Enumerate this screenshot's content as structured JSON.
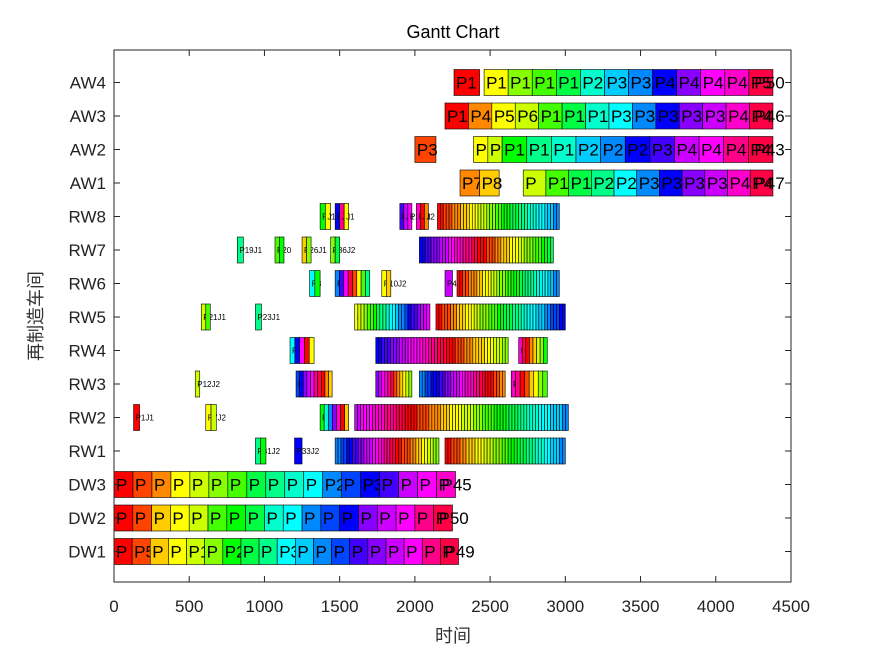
{
  "chart_data": {
    "type": "gantt",
    "title": "Gantt Chart",
    "xlabel": "时间",
    "ylabel": "再制造车间",
    "xlim": [
      0,
      4500
    ],
    "xticks": [
      0,
      500,
      1000,
      1500,
      2000,
      2500,
      3000,
      3500,
      4000,
      4500
    ],
    "rows": [
      "AW4",
      "AW3",
      "AW2",
      "AW1",
      "RW8",
      "RW7",
      "RW6",
      "RW5",
      "RW4",
      "RW3",
      "RW2",
      "RW1",
      "DW3",
      "DW2",
      "DW1"
    ],
    "row_end_labels": [
      {
        "row": "AW4",
        "x": 4350,
        "text": "P50"
      },
      {
        "row": "AW3",
        "x": 4350,
        "text": "P46"
      },
      {
        "row": "AW2",
        "x": 4350,
        "text": "P43"
      },
      {
        "row": "AW1",
        "x": 4350,
        "text": "P47"
      },
      {
        "row": "DW3",
        "x": 2270,
        "text": "P45"
      },
      {
        "row": "DW2",
        "x": 2250,
        "text": "P50"
      },
      {
        "row": "DW1",
        "x": 2290,
        "text": "P49"
      }
    ],
    "palette": [
      "#ff0000",
      "#ff4400",
      "#ff8800",
      "#ffcc00",
      "#ffff00",
      "#ccff00",
      "#88ff00",
      "#44ff00",
      "#00ff00",
      "#00ff44",
      "#00ff88",
      "#00ffcc",
      "#00ffff",
      "#00ccff",
      "#0088ff",
      "#0044ff",
      "#0000ff",
      "#4400ff",
      "#8800ff",
      "#cc00ff",
      "#ff00ff",
      "#ff00cc",
      "#ff0088",
      "#ff0044"
    ],
    "task_groups": [
      {
        "row": "AW4",
        "start": 2260,
        "end": 2430,
        "count": 1,
        "c0": 0,
        "c1": 0,
        "labels": [
          "P1"
        ],
        "font": 17
      },
      {
        "row": "AW4",
        "start": 2460,
        "end": 4380,
        "count": 12,
        "c0": 4,
        "c1": 23,
        "labels": [
          "P1",
          "P1",
          "P1",
          "P1",
          "P2",
          "P3",
          "P3",
          "P4",
          "P4",
          "P4",
          "P4",
          "P5"
        ],
        "font": 17
      },
      {
        "row": "AW3",
        "start": 2200,
        "end": 4380,
        "count": 14,
        "c0": 0,
        "c1": 23,
        "labels": [
          "P1",
          "P4",
          "P5",
          "P6",
          "P1",
          "P1",
          "P1",
          "P3",
          "P3",
          "P3",
          "P3",
          "P3",
          "P4",
          "P4"
        ],
        "font": 17
      },
      {
        "row": "AW2",
        "start": 2000,
        "end": 2140,
        "count": 1,
        "c0": 1,
        "c1": 1,
        "labels": [
          "P3"
        ],
        "font": 17
      },
      {
        "row": "AW2",
        "start": 2390,
        "end": 2580,
        "count": 2,
        "c0": 4,
        "c1": 5,
        "labels": [
          "P9",
          "P1"
        ],
        "font": 17
      },
      {
        "row": "AW2",
        "start": 2580,
        "end": 4380,
        "count": 11,
        "c0": 8,
        "c1": 23,
        "labels": [
          "P1",
          "P1",
          "P1",
          "P2",
          "P2",
          "P2",
          "P3",
          "P4",
          "P4",
          "P4",
          "P4"
        ],
        "font": 17
      },
      {
        "row": "AW1",
        "start": 2300,
        "end": 2560,
        "count": 2,
        "c0": 2,
        "c1": 3,
        "labels": [
          "P7",
          "P8"
        ],
        "font": 17
      },
      {
        "row": "AW1",
        "start": 2720,
        "end": 4380,
        "count": 11,
        "c0": 5,
        "c1": 23,
        "labels": [
          "P",
          "P1",
          "P1",
          "P2",
          "P2",
          "P3",
          "P3",
          "P3",
          "P3",
          "P4",
          "P4"
        ],
        "font": 17
      },
      {
        "row": "RW8",
        "start": 1370,
        "end": 1440,
        "count": 2,
        "c0": 8,
        "c1": 4,
        "labels": [
          "P2",
          "J1"
        ],
        "font": 8
      },
      {
        "row": "RW8",
        "start": 1470,
        "end": 1560,
        "count": 3,
        "c0": 16,
        "c1": 4,
        "labels": [
          "P1",
          "J1",
          "J1"
        ],
        "font": 8
      },
      {
        "row": "RW8",
        "start": 1900,
        "end": 1980,
        "count": 3,
        "c0": 17,
        "c1": 20,
        "labels": [
          "P2",
          "J1",
          "P2"
        ],
        "font": 8
      },
      {
        "row": "RW8",
        "start": 2010,
        "end": 2090,
        "count": 3,
        "c0": 21,
        "c1": 2,
        "labels": [
          "P2",
          "J1",
          "J2"
        ],
        "font": 8
      },
      {
        "row": "RW8",
        "start": 2150,
        "end": 2960,
        "count": 42,
        "c0": 0,
        "c1": 14,
        "labels": [
          "P27J2"
        ],
        "font": 8
      },
      {
        "row": "RW7",
        "start": 820,
        "end": 860,
        "count": 1,
        "c0": 10,
        "c1": 10,
        "labels": [
          "P19J1"
        ],
        "font": 8
      },
      {
        "row": "RW7",
        "start": 1070,
        "end": 1130,
        "count": 2,
        "c0": 7,
        "c1": 8,
        "labels": [
          "P20"
        ],
        "font": 8
      },
      {
        "row": "RW7",
        "start": 1250,
        "end": 1310,
        "count": 2,
        "c0": 3,
        "c1": 6,
        "labels": [
          "P26J1"
        ],
        "font": 8
      },
      {
        "row": "RW7",
        "start": 1440,
        "end": 1500,
        "count": 2,
        "c0": 6,
        "c1": 9,
        "labels": [
          "P36J2"
        ],
        "font": 8
      },
      {
        "row": "RW7",
        "start": 2030,
        "end": 2920,
        "count": 46,
        "c0": 16,
        "c1": 9,
        "labels": [
          "P1"
        ],
        "font": 8
      },
      {
        "row": "RW6",
        "start": 1300,
        "end": 1370,
        "count": 2,
        "c0": 12,
        "c1": 8,
        "labels": [
          "P8"
        ],
        "font": 8
      },
      {
        "row": "RW6",
        "start": 1470,
        "end": 1700,
        "count": 8,
        "c0": 14,
        "c1": 10,
        "labels": [
          "P2"
        ],
        "font": 8
      },
      {
        "row": "RW6",
        "start": 1780,
        "end": 1840,
        "count": 2,
        "c0": 4,
        "c1": 3,
        "labels": [
          "P10J2"
        ],
        "font": 8
      },
      {
        "row": "RW6",
        "start": 2200,
        "end": 2250,
        "count": 1,
        "c0": 19,
        "c1": 19,
        "labels": [
          "P4"
        ],
        "font": 8
      },
      {
        "row": "RW6",
        "start": 2280,
        "end": 2960,
        "count": 36,
        "c0": 0,
        "c1": 14,
        "labels": [
          "P41J2"
        ],
        "font": 8
      },
      {
        "row": "RW5",
        "start": 580,
        "end": 640,
        "count": 2,
        "c0": 5,
        "c1": 7,
        "labels": [
          "P21J1"
        ],
        "font": 8
      },
      {
        "row": "RW5",
        "start": 940,
        "end": 980,
        "count": 1,
        "c0": 10,
        "c1": 10,
        "labels": [
          "P23J1"
        ],
        "font": 8
      },
      {
        "row": "RW5",
        "start": 1600,
        "end": 2100,
        "count": 24,
        "c0": 4,
        "c1": 20,
        "labels": [
          "P4J2"
        ],
        "font": 8
      },
      {
        "row": "RW5",
        "start": 2140,
        "end": 3000,
        "count": 44,
        "c0": 0,
        "c1": 16,
        "labels": [
          "P29J2"
        ],
        "font": 8
      },
      {
        "row": "RW4",
        "start": 1170,
        "end": 1330,
        "count": 5,
        "c0": 12,
        "c1": 4,
        "labels": [
          "P9J2"
        ],
        "font": 8
      },
      {
        "row": "RW4",
        "start": 1740,
        "end": 2620,
        "count": 45,
        "c0": 16,
        "c1": 6,
        "labels": [
          "P20"
        ],
        "font": 8
      },
      {
        "row": "RW4",
        "start": 2690,
        "end": 2880,
        "count": 8,
        "c0": 21,
        "c1": 8,
        "labels": [
          "P32J2"
        ],
        "font": 8
      },
      {
        "row": "RW3",
        "start": 540,
        "end": 570,
        "count": 1,
        "c0": 5,
        "c1": 5,
        "labels": [
          "P12J2"
        ],
        "font": 8
      },
      {
        "row": "RW3",
        "start": 1210,
        "end": 1450,
        "count": 10,
        "c0": 15,
        "c1": 3,
        "labels": [
          "P11J2"
        ],
        "font": 8
      },
      {
        "row": "RW3",
        "start": 1740,
        "end": 1980,
        "count": 12,
        "c0": 18,
        "c1": 6,
        "labels": [
          "P3"
        ],
        "font": 8
      },
      {
        "row": "RW3",
        "start": 2030,
        "end": 2600,
        "count": 30,
        "c0": 14,
        "c1": 2,
        "labels": [
          "P2"
        ],
        "font": 8
      },
      {
        "row": "RW3",
        "start": 2640,
        "end": 2880,
        "count": 8,
        "c0": 21,
        "c1": 7,
        "labels": [
          "P44J2"
        ],
        "font": 8
      },
      {
        "row": "RW2",
        "start": 130,
        "end": 170,
        "count": 1,
        "c0": 0,
        "c1": 0,
        "labels": [
          "P1J1"
        ],
        "font": 8
      },
      {
        "row": "RW2",
        "start": 610,
        "end": 680,
        "count": 2,
        "c0": 4,
        "c1": 5,
        "labels": [
          "P7J2"
        ],
        "font": 8
      },
      {
        "row": "RW2",
        "start": 1370,
        "end": 1560,
        "count": 7,
        "c0": 8,
        "c1": 3,
        "labels": [
          "P3"
        ],
        "font": 8
      },
      {
        "row": "RW2",
        "start": 1600,
        "end": 3020,
        "count": 72,
        "c0": 19,
        "c1": 14,
        "labels": [
          "P30J2"
        ],
        "font": 8
      },
      {
        "row": "RW1",
        "start": 940,
        "end": 1010,
        "count": 2,
        "c0": 10,
        "c1": 8,
        "labels": [
          "P31J2"
        ],
        "font": 8
      },
      {
        "row": "RW1",
        "start": 1200,
        "end": 1250,
        "count": 1,
        "c0": 16,
        "c1": 16,
        "labels": [
          "P33J2"
        ],
        "font": 8
      },
      {
        "row": "RW1",
        "start": 1470,
        "end": 2160,
        "count": 36,
        "c0": 14,
        "c1": 6,
        "labels": [
          "P2"
        ],
        "font": 8
      },
      {
        "row": "RW1",
        "start": 2200,
        "end": 3000,
        "count": 40,
        "c0": 0,
        "c1": 14,
        "labels": [
          "P28J1"
        ],
        "font": 8
      },
      {
        "row": "DW3",
        "start": 0,
        "end": 2270,
        "count": 18,
        "c0": 0,
        "c1": 21,
        "labels": [
          "P",
          "P",
          "P",
          "P",
          "P",
          "P",
          "P",
          "P",
          "P",
          "P",
          "P",
          "P2",
          "P",
          "P3",
          "P",
          "P",
          "P",
          "P"
        ],
        "font": 17
      },
      {
        "row": "DW2",
        "start": 0,
        "end": 2250,
        "count": 18,
        "c0": 0,
        "c1": 23,
        "labels": [
          "P",
          "P",
          "P",
          "P",
          "P",
          "P",
          "P",
          "P",
          "P",
          "P",
          "P",
          "P",
          "P",
          "P",
          "P",
          "P",
          "P",
          "P"
        ],
        "font": 17
      },
      {
        "row": "DW1",
        "start": 0,
        "end": 2290,
        "count": 19,
        "c0": 0,
        "c1": 23,
        "labels": [
          "P",
          "P5",
          "P",
          "P",
          "P1",
          "P",
          "P2",
          "P",
          "P",
          "P3",
          "P",
          "P",
          "P",
          "P",
          "P",
          "P",
          "P",
          "P",
          "P"
        ],
        "font": 17
      }
    ]
  }
}
